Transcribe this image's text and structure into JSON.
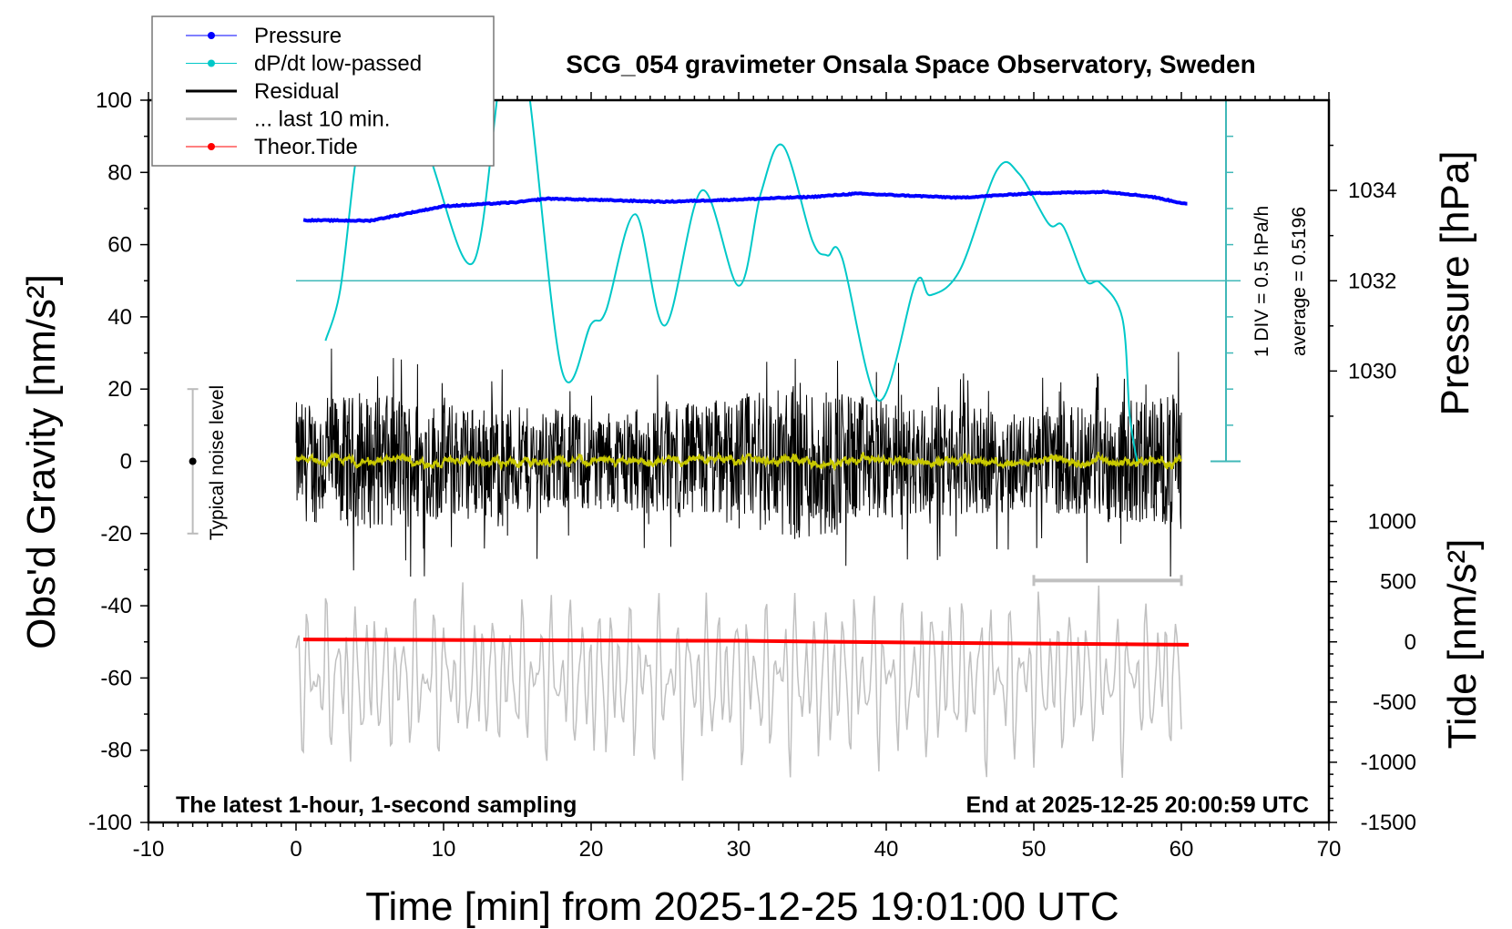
{
  "chart_data": {
    "type": "line",
    "title": "SCG_054 gravimeter Onsala Space Observatory, Sweden",
    "xlabel": "Time [min] from 2025-12-25 19:01:00 UTC",
    "ylabel_left": "Obs'd Gravity [nm/s²]",
    "ylabel_right_pressure": "Pressure [hPa]",
    "ylabel_right_tide": "Tide [nm/s²]",
    "xlim": [
      -10,
      70
    ],
    "ylim": [
      -100,
      100
    ],
    "x_ticks": [
      "-10",
      "0",
      "10",
      "20",
      "30",
      "40",
      "50",
      "60",
      "70"
    ],
    "y_ticks": [
      "100",
      "80",
      "60",
      "40",
      "20",
      "0",
      "-20",
      "-40",
      "-60",
      "-80",
      "-100"
    ],
    "pressure_ticks": [
      "1034",
      "1032",
      "1030"
    ],
    "tide_ticks": [
      "1000",
      "500",
      "0",
      "-500",
      "-1000",
      "-1500"
    ],
    "grid": false,
    "legend_position": "top-left",
    "legend": [
      {
        "label": "Pressure",
        "color": "#0000ff",
        "marker": true
      },
      {
        "label": "dP/dt low-passed",
        "color": "#00c8c8",
        "marker": true
      },
      {
        "label": "Residual",
        "color": "#000000",
        "marker": false
      },
      {
        "label": "... last 10 min.",
        "color": "#c0c0c0",
        "marker": false
      },
      {
        "label": "Theor.Tide",
        "color": "#ff0000",
        "marker": true
      }
    ],
    "annotations": {
      "left": "The latest 1-hour, 1-second sampling",
      "right": "End at 2025-12-25 20:00:59 UTC",
      "dpdt_scale": "1 DIV = 0.5 hPa/h",
      "dpdt_average": "average = 0.5196",
      "noise_label": "Typical noise level"
    },
    "series": [
      {
        "name": "Pressure",
        "unit": "hPa",
        "color": "#0000ff",
        "x": [
          0.5,
          5,
          10,
          15,
          17,
          25,
          30,
          35,
          38,
          45,
          50,
          55,
          58,
          60.5
        ],
        "y": [
          1033.34,
          1033.33,
          1033.65,
          1033.74,
          1033.82,
          1033.75,
          1033.8,
          1033.86,
          1033.93,
          1033.84,
          1033.94,
          1033.97,
          1033.86,
          1033.69
        ]
      },
      {
        "name": "dP/dt low-passed",
        "unit": "hPa/h",
        "color": "#00c8c8",
        "x": [
          2,
          3,
          4,
          5,
          7,
          9,
          12,
          14,
          15.5,
          18,
          20,
          21,
          23,
          25,
          27.5,
          30,
          31.5,
          33,
          35,
          36,
          37,
          39.5,
          42,
          43,
          45,
          47.5,
          49,
          51,
          52,
          53.5,
          54.5,
          56,
          56.5,
          57
        ],
        "y": [
          -0.31,
          0.4,
          2.12,
          3.42,
          3.2,
          2.27,
          0.77,
          3.52,
          3.52,
          -0.71,
          -0.08,
          0.1,
          1.44,
          -0.1,
          1.77,
          0.45,
          1.73,
          2.39,
          1.07,
          0.87,
          0.84,
          -1.14,
          0.49,
          0.32,
          0.67,
          2.05,
          2.0,
          1.31,
          1.27,
          0.53,
          0.49,
          0.0,
          -1.34,
          -1.98
        ]
      },
      {
        "name": "Residual",
        "unit": "nm/s²",
        "color": "#000000",
        "x_envelope": [
          0,
          5,
          10,
          15,
          20,
          25,
          30,
          35,
          40,
          45,
          50,
          55,
          60
        ],
        "amplitude_envelope": [
          22,
          25,
          22,
          20,
          18,
          20,
          25,
          30,
          22,
          20,
          18,
          22,
          25
        ]
      },
      {
        "name": "Residual smoothed",
        "unit": "nm/s²",
        "color": "#c8c800",
        "amplitude": 2
      },
      {
        "name": "... last 10 min.",
        "unit": "nm/s²",
        "color": "#c0c0c0",
        "x_range_min": [
          50,
          60
        ],
        "amplitude": 22
      },
      {
        "name": "Theor.Tide",
        "unit": "nm/s²",
        "color": "#ff0000",
        "x": [
          0.5,
          20,
          30,
          45,
          60.5
        ],
        "y": [
          20,
          12,
          9,
          -9,
          -24
        ]
      }
    ],
    "noise_level": {
      "t": -7,
      "range": [
        -20,
        20
      ]
    }
  }
}
